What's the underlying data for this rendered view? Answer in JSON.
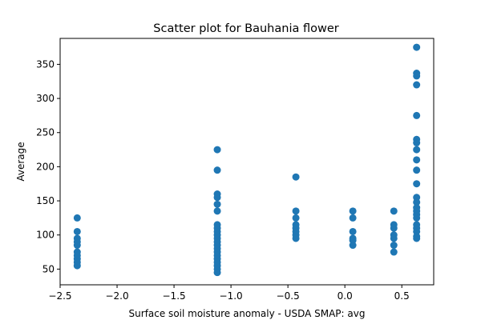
{
  "chart_data": {
    "type": "scatter",
    "title": "Scatter plot for Bauhania flower",
    "xlabel": "Surface soil moisture anomaly  - USDA SMAP: avg",
    "ylabel": "Average",
    "xlim": [
      -2.5,
      0.78
    ],
    "ylim": [
      27,
      388
    ],
    "xticks": [
      -2.5,
      -2.0,
      -1.5,
      -1.0,
      -0.5,
      0.0,
      0.5
    ],
    "xtick_labels": [
      "−2.5",
      "−2.0",
      "−1.5",
      "−1.0",
      "−0.5",
      "0.0",
      "0.5"
    ],
    "yticks": [
      50,
      100,
      150,
      200,
      250,
      300,
      350
    ],
    "ytick_labels": [
      "50",
      "100",
      "150",
      "200",
      "250",
      "300",
      "350"
    ],
    "grid": false,
    "color": "#1f77b4",
    "points": [
      {
        "x": -2.35,
        "y": 125
      },
      {
        "x": -2.35,
        "y": 105
      },
      {
        "x": -2.35,
        "y": 95
      },
      {
        "x": -2.35,
        "y": 90
      },
      {
        "x": -2.35,
        "y": 85
      },
      {
        "x": -2.35,
        "y": 75
      },
      {
        "x": -2.35,
        "y": 70
      },
      {
        "x": -2.35,
        "y": 65
      },
      {
        "x": -2.35,
        "y": 60
      },
      {
        "x": -2.35,
        "y": 55
      },
      {
        "x": -1.12,
        "y": 225
      },
      {
        "x": -1.12,
        "y": 195
      },
      {
        "x": -1.12,
        "y": 160
      },
      {
        "x": -1.12,
        "y": 155
      },
      {
        "x": -1.12,
        "y": 145
      },
      {
        "x": -1.12,
        "y": 135
      },
      {
        "x": -1.12,
        "y": 115
      },
      {
        "x": -1.12,
        "y": 110
      },
      {
        "x": -1.12,
        "y": 105
      },
      {
        "x": -1.12,
        "y": 100
      },
      {
        "x": -1.12,
        "y": 95
      },
      {
        "x": -1.12,
        "y": 90
      },
      {
        "x": -1.12,
        "y": 85
      },
      {
        "x": -1.12,
        "y": 80
      },
      {
        "x": -1.12,
        "y": 75
      },
      {
        "x": -1.12,
        "y": 70
      },
      {
        "x": -1.12,
        "y": 65
      },
      {
        "x": -1.12,
        "y": 60
      },
      {
        "x": -1.12,
        "y": 55
      },
      {
        "x": -1.12,
        "y": 50
      },
      {
        "x": -1.12,
        "y": 45
      },
      {
        "x": -0.43,
        "y": 185
      },
      {
        "x": -0.43,
        "y": 135
      },
      {
        "x": -0.43,
        "y": 125
      },
      {
        "x": -0.43,
        "y": 115
      },
      {
        "x": -0.43,
        "y": 110
      },
      {
        "x": -0.43,
        "y": 105
      },
      {
        "x": -0.43,
        "y": 100
      },
      {
        "x": -0.43,
        "y": 95
      },
      {
        "x": 0.07,
        "y": 135
      },
      {
        "x": 0.07,
        "y": 125
      },
      {
        "x": 0.07,
        "y": 105
      },
      {
        "x": 0.07,
        "y": 95
      },
      {
        "x": 0.07,
        "y": 92
      },
      {
        "x": 0.07,
        "y": 85
      },
      {
        "x": 0.43,
        "y": 135
      },
      {
        "x": 0.43,
        "y": 115
      },
      {
        "x": 0.43,
        "y": 110
      },
      {
        "x": 0.43,
        "y": 100
      },
      {
        "x": 0.43,
        "y": 95
      },
      {
        "x": 0.43,
        "y": 85
      },
      {
        "x": 0.43,
        "y": 75
      },
      {
        "x": 0.63,
        "y": 375
      },
      {
        "x": 0.63,
        "y": 337
      },
      {
        "x": 0.63,
        "y": 333
      },
      {
        "x": 0.63,
        "y": 320
      },
      {
        "x": 0.63,
        "y": 275
      },
      {
        "x": 0.63,
        "y": 240
      },
      {
        "x": 0.63,
        "y": 235
      },
      {
        "x": 0.63,
        "y": 225
      },
      {
        "x": 0.63,
        "y": 210
      },
      {
        "x": 0.63,
        "y": 195
      },
      {
        "x": 0.63,
        "y": 175
      },
      {
        "x": 0.63,
        "y": 155
      },
      {
        "x": 0.63,
        "y": 148
      },
      {
        "x": 0.63,
        "y": 140
      },
      {
        "x": 0.63,
        "y": 135
      },
      {
        "x": 0.63,
        "y": 130
      },
      {
        "x": 0.63,
        "y": 125
      },
      {
        "x": 0.63,
        "y": 115
      },
      {
        "x": 0.63,
        "y": 110
      },
      {
        "x": 0.63,
        "y": 105
      },
      {
        "x": 0.63,
        "y": 98
      },
      {
        "x": 0.63,
        "y": 95
      }
    ]
  }
}
